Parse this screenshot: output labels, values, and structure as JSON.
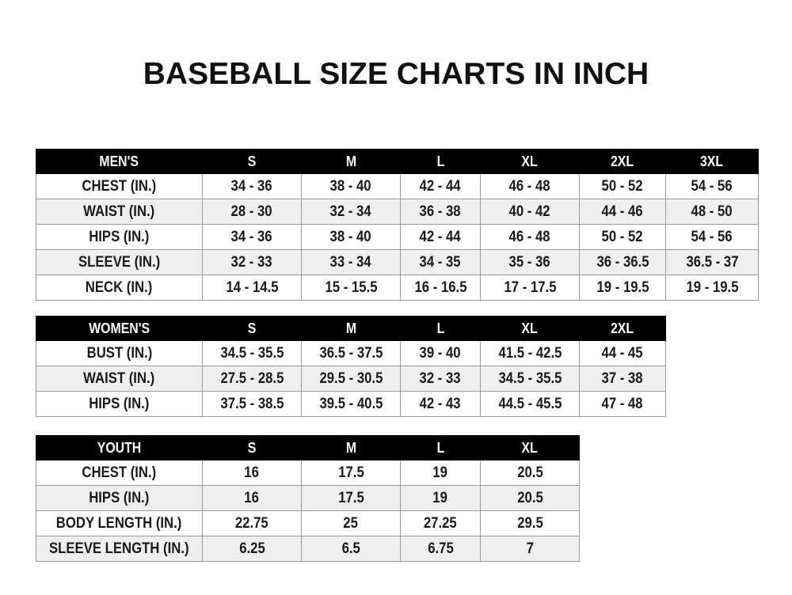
{
  "title": "BASEBALL SIZE CHARTS IN INCH",
  "tables": [
    {
      "id": "mens",
      "headers": [
        "MEN'S",
        "S",
        "M",
        "L",
        "XL",
        "2XL",
        "3XL"
      ],
      "rows": [
        [
          "CHEST (IN.)",
          "34 - 36",
          "38 - 40",
          "42 - 44",
          "46 - 48",
          "50 - 52",
          "54 - 56"
        ],
        [
          "WAIST (IN.)",
          "28 - 30",
          "32 - 34",
          "36 - 38",
          "40 - 42",
          "44 - 46",
          "48 - 50"
        ],
        [
          "HIPS (IN.)",
          "34 - 36",
          "38 - 40",
          "42 - 44",
          "46 - 48",
          "50 - 52",
          "54 - 56"
        ],
        [
          "SLEEVE (IN.)",
          "32 - 33",
          "33 - 34",
          "34 - 35",
          "35 - 36",
          "36 - 36.5",
          "36.5 - 37"
        ],
        [
          "NECK (IN.)",
          "14 - 14.5",
          "15 - 15.5",
          "16 - 16.5",
          "17 - 17.5",
          "19 - 19.5",
          "19 - 19.5"
        ]
      ]
    },
    {
      "id": "womens",
      "headers": [
        "WOMEN'S",
        "S",
        "M",
        "L",
        "XL",
        "2XL"
      ],
      "rows": [
        [
          "BUST (IN.)",
          "34.5 - 35.5",
          "36.5 - 37.5",
          "39 - 40",
          "41.5 - 42.5",
          "44 - 45"
        ],
        [
          "WAIST (IN.)",
          "27.5 - 28.5",
          "29.5 - 30.5",
          "32 - 33",
          "34.5 - 35.5",
          "37 - 38"
        ],
        [
          "HIPS (IN.)",
          "37.5 - 38.5",
          "39.5 - 40.5",
          "42 - 43",
          "44.5 - 45.5",
          "47 - 48"
        ]
      ]
    },
    {
      "id": "youth",
      "headers": [
        "YOUTH",
        "S",
        "M",
        "L",
        "XL"
      ],
      "rows": [
        [
          "CHEST (IN.)",
          "16",
          "17.5",
          "19",
          "20.5"
        ],
        [
          "HIPS (IN.)",
          "16",
          "17.5",
          "19",
          "20.5"
        ],
        [
          "BODY LENGTH (IN.)",
          "22.75",
          "25",
          "27.25",
          "29.5"
        ],
        [
          "SLEEVE LENGTH (IN.)",
          "6.25",
          "6.5",
          "6.75",
          "7"
        ]
      ]
    }
  ]
}
